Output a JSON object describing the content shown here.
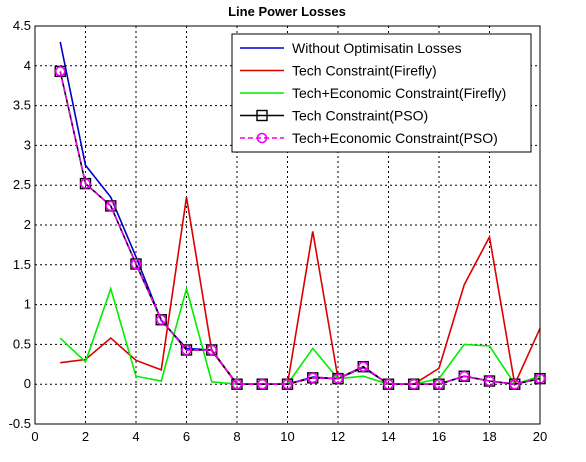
{
  "chart_data": {
    "type": "line",
    "title": "Line Power Losses",
    "xlabel": "",
    "ylabel": "",
    "xlim": [
      0,
      20
    ],
    "ylim": [
      -0.5,
      4.5
    ],
    "x_ticks": [
      0,
      2,
      4,
      6,
      8,
      10,
      12,
      14,
      16,
      18,
      20
    ],
    "y_ticks": [
      -0.5,
      0,
      0.5,
      1,
      1.5,
      2,
      2.5,
      3,
      3.5,
      4,
      4.5
    ],
    "grid": true,
    "legend_position": "top-right",
    "x": [
      1,
      2,
      3,
      4,
      5,
      6,
      7,
      8,
      9,
      10,
      11,
      12,
      13,
      14,
      15,
      16,
      17,
      18,
      19,
      20
    ],
    "series": [
      {
        "name": "Without Optimisatin Losses",
        "color": "#0000cc",
        "dash": "solid",
        "marker": "none",
        "values": [
          4.3,
          2.75,
          2.35,
          1.6,
          0.8,
          0.45,
          0.43,
          0.0,
          0.0,
          0.0,
          0.09,
          0.07,
          0.21,
          0.0,
          0.0,
          0.0,
          0.1,
          0.04,
          0.0,
          0.07
        ]
      },
      {
        "name": "Tech Constraint(Firefly)",
        "color": "#dd0000",
        "dash": "solid",
        "marker": "none",
        "values": [
          0.27,
          0.31,
          0.58,
          0.3,
          0.18,
          2.35,
          0.42,
          0.0,
          0.0,
          0.0,
          1.92,
          0.07,
          0.22,
          0.0,
          0.0,
          0.2,
          1.25,
          1.85,
          0.0,
          0.7
        ]
      },
      {
        "name": "Tech+Economic Constraint(Firefly)",
        "color": "#00ee00",
        "dash": "solid",
        "marker": "none",
        "values": [
          0.58,
          0.28,
          1.2,
          0.1,
          0.04,
          1.2,
          0.03,
          0.0,
          0.0,
          0.0,
          0.45,
          0.07,
          0.1,
          0.0,
          0.0,
          0.07,
          0.5,
          0.48,
          0.0,
          0.1
        ]
      },
      {
        "name": "Tech Constraint(PSO)",
        "color": "#000000",
        "dash": "solid",
        "marker": "square",
        "values": [
          3.93,
          2.52,
          2.24,
          1.51,
          0.81,
          0.43,
          0.43,
          0.0,
          0.0,
          0.0,
          0.08,
          0.07,
          0.22,
          0.0,
          0.0,
          0.0,
          0.1,
          0.04,
          0.0,
          0.07
        ]
      },
      {
        "name": "Tech+Economic Constraint(PSO)",
        "color": "#ee00ee",
        "dash": "dashed",
        "marker": "circle",
        "values": [
          3.93,
          2.52,
          2.24,
          1.51,
          0.81,
          0.43,
          0.43,
          0.0,
          0.0,
          0.0,
          0.08,
          0.07,
          0.22,
          0.0,
          0.0,
          0.0,
          0.1,
          0.04,
          0.0,
          0.07
        ]
      }
    ]
  }
}
